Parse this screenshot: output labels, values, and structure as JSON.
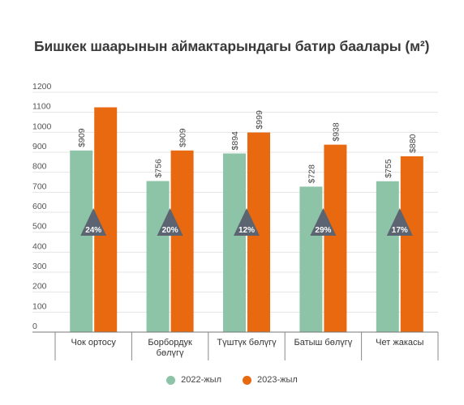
{
  "title": "Бишкек шаарынын аймактарындагы батир баалары (м²)",
  "chart_data": {
    "type": "bar",
    "title": "Бишкек шаарынын аймактарындагы батир баалары (м²)",
    "categories": [
      "Чок ортосу",
      "Борбордук бөлүгү",
      "Түштүк бөлүгү",
      "Батыш бөлүгү",
      "Чет жакасы"
    ],
    "series": [
      {
        "name": "2022-жыл",
        "color": "#8dc3a7",
        "values": [
          909,
          756,
          894,
          728,
          755
        ],
        "labels": [
          "$909",
          "$756",
          "$894",
          "$728",
          "$755"
        ]
      },
      {
        "name": "2023-жыл",
        "color": "#e8690f",
        "values": [
          1125,
          909,
          999,
          938,
          880
        ],
        "labels": [
          "",
          "$909",
          "$999",
          "$938",
          "$880"
        ]
      }
    ],
    "growth_labels": [
      "24%",
      "20%",
      "12%",
      "29%",
      "17%"
    ],
    "growth_marker_color": "#5b6470",
    "ylim": [
      0,
      1200
    ],
    "yticks": [
      0,
      100,
      200,
      300,
      400,
      500,
      600,
      700,
      800,
      900,
      1000,
      1100,
      1200
    ],
    "grid": true,
    "legend_position": "bottom"
  }
}
